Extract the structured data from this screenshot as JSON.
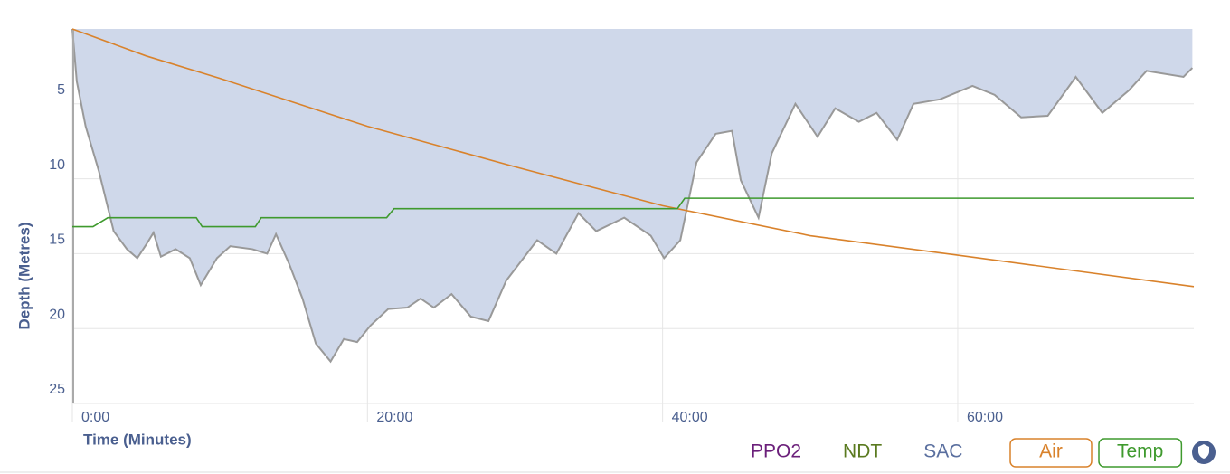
{
  "chart_data": {
    "type": "dive-profile",
    "y_label": "Depth (Metres)",
    "x_label": "Time (Minutes)",
    "xlim": [
      0,
      76
    ],
    "ylim": [
      0,
      25
    ],
    "yticks": [
      5,
      10,
      15,
      20,
      25
    ],
    "xticks": [
      {
        "value": 0,
        "label": "0:00"
      },
      {
        "value": 20,
        "label": "20:00"
      },
      {
        "value": 40,
        "label": "40:00"
      },
      {
        "value": 60,
        "label": "60:00"
      }
    ],
    "grid": true,
    "depth": {
      "color": "#cfd8ea",
      "line_color": "#999999",
      "x": [
        0,
        0.3,
        0.9,
        1.8,
        2.8,
        3.7,
        4.4,
        5,
        5.5,
        6,
        7,
        7.96,
        8.7,
        9.8,
        10.7,
        12.2,
        13.2,
        13.8,
        14.7,
        15.6,
        16.5,
        17.5,
        18.4,
        19.3,
        20.2,
        21.4,
        22.7,
        23.6,
        24.5,
        25.7,
        27,
        28.2,
        29.4,
        31.5,
        32.8,
        34.3,
        35.5,
        37.4,
        39.2,
        40.1,
        41.2,
        42.3,
        43.6,
        44.7,
        45.3,
        46.5,
        47.4,
        49,
        50.5,
        51.7,
        53.3,
        54.5,
        55.9,
        57,
        58.8,
        61,
        62.5,
        64.3,
        66.1,
        68,
        69.8,
        71.6,
        72.8,
        75.3,
        75.9
      ],
      "values": [
        0,
        3.5,
        6.5,
        9.5,
        13.5,
        14.7,
        15.3,
        14.4,
        13.6,
        15.2,
        14.7,
        15.3,
        17.1,
        15.3,
        14.5,
        14.7,
        15,
        13.7,
        15.7,
        18,
        21,
        22.2,
        20.7,
        20.9,
        19.8,
        18.7,
        18.6,
        18,
        18.6,
        17.7,
        19.2,
        19.5,
        16.8,
        14.1,
        15,
        12.3,
        13.5,
        12.6,
        13.8,
        15.3,
        14.1,
        8.9,
        7,
        6.8,
        10.1,
        12.6,
        8.3,
        5,
        7.2,
        5.3,
        6.2,
        5.6,
        7.4,
        5,
        4.7,
        3.8,
        4.4,
        5.9,
        5.8,
        3.2,
        5.6,
        4.1,
        2.8,
        3.2,
        2.6
      ]
    },
    "series": [
      {
        "name": "Air",
        "color": "#d9822b",
        "x": [
          0,
          5,
          10,
          20,
          30,
          40,
          50,
          60,
          76
        ],
        "values": [
          0,
          1.8,
          3.3,
          6.5,
          9.2,
          11.8,
          13.8,
          15.1,
          17.2
        ]
      },
      {
        "name": "Temp",
        "color": "#3f9a2e",
        "x": [
          0,
          1.4,
          2.4,
          8.4,
          8.8,
          12.4,
          12.8,
          21.3,
          21.8,
          41,
          41.5,
          76
        ],
        "values": [
          13.2,
          13.2,
          12.6,
          12.6,
          13.2,
          13.2,
          12.6,
          12.6,
          12,
          12,
          11.3,
          11.3
        ]
      }
    ],
    "inactive_toggles": [
      {
        "name": "PPO2",
        "color": "#6b1f7a"
      },
      {
        "name": "NDT",
        "color": "#5a7a1f"
      },
      {
        "name": "SAC",
        "color": "#5a6f9f"
      }
    ]
  }
}
